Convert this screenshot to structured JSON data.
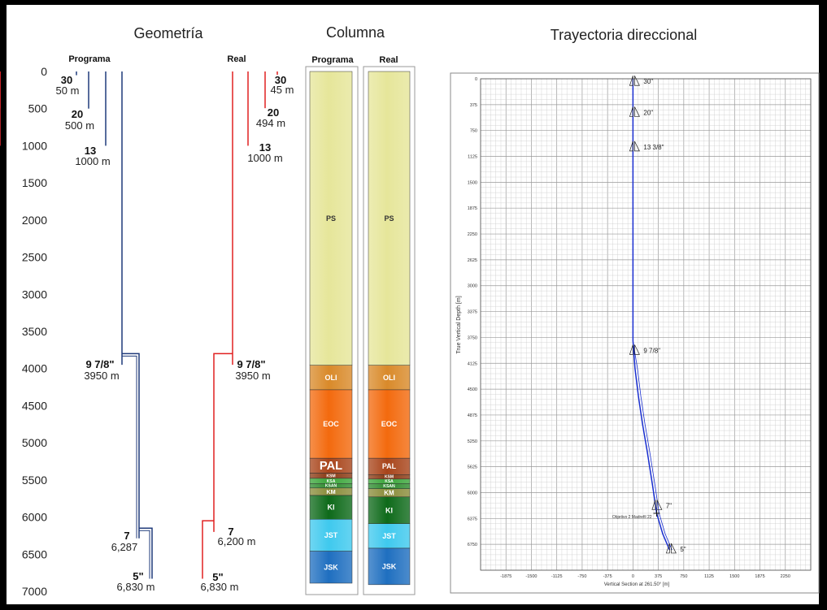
{
  "titles": {
    "geometria": "Geometría",
    "columna": "Columna",
    "trayectoria": "Trayectoria direccional"
  },
  "geometry": {
    "header_programa": "Programa",
    "header_real": "Real",
    "depth_ticks": [
      0,
      500,
      1000,
      1500,
      2000,
      2500,
      3000,
      3500,
      4000,
      4500,
      5000,
      5500,
      6000,
      6500,
      7000
    ],
    "programa_casings": [
      {
        "size": "30",
        "depth_label": "50 m",
        "depth": 50
      },
      {
        "size": "20",
        "depth_label": "500 m",
        "depth": 500
      },
      {
        "size": "13",
        "depth_label": "1000 m",
        "depth": 1000
      },
      {
        "size": "9 7/8\"",
        "depth_label": "3950 m",
        "depth": 3950
      },
      {
        "size": "7",
        "depth_label": "6,287",
        "depth": 6287
      },
      {
        "size": "5\"",
        "depth_label": "6,830 m",
        "depth": 6830
      }
    ],
    "real_casings": [
      {
        "size": "30",
        "depth_label": "45 m",
        "depth": 45
      },
      {
        "size": "20",
        "depth_label": "494 m",
        "depth": 494
      },
      {
        "size": "13",
        "depth_label": "1000 m",
        "depth": 1000
      },
      {
        "size": "9 7/8\"",
        "depth_label": "3950 m",
        "depth": 3950
      },
      {
        "size": "7",
        "depth_label": "6,200 m",
        "depth": 6200
      },
      {
        "size": "5\"",
        "depth_label": "6,830 m",
        "depth": 6830
      }
    ],
    "colors": {
      "programa": "#1f3a7a",
      "real": "#e02020"
    }
  },
  "column": {
    "header_programa": "Programa",
    "header_real": "Real",
    "programa_layers": [
      {
        "label": "PS",
        "top": 0,
        "bottom": 3950,
        "color": "#e6e69a"
      },
      {
        "label": "OLI",
        "top": 3950,
        "bottom": 4280,
        "color": "#d98a2a"
      },
      {
        "label": "EOC",
        "top": 4280,
        "bottom": 5200,
        "color": "#f36a0e"
      },
      {
        "label": "PAL",
        "top": 5200,
        "bottom": 5400,
        "color": "#a8441a"
      },
      {
        "label": "KSM",
        "top": 5400,
        "bottom": 5470,
        "color": "#8a3a14"
      },
      {
        "label": "KSA",
        "top": 5470,
        "bottom": 5540,
        "color": "#3aa63a"
      },
      {
        "label": "KSAN",
        "top": 5540,
        "bottom": 5600,
        "color": "#2e8b2e"
      },
      {
        "label": "KM",
        "top": 5600,
        "bottom": 5700,
        "color": "#8a8c3a"
      },
      {
        "label": "KI",
        "top": 5700,
        "bottom": 6020,
        "color": "#0e6a1a"
      },
      {
        "label": "JST",
        "top": 6020,
        "bottom": 6450,
        "color": "#3fc9ee"
      },
      {
        "label": "JSK",
        "top": 6450,
        "bottom": 6880,
        "color": "#1f6fc0"
      }
    ],
    "real_layers": [
      {
        "label": "PS",
        "top": 0,
        "bottom": 3950,
        "color": "#e6e69a"
      },
      {
        "label": "OLI",
        "top": 3950,
        "bottom": 4280,
        "color": "#d98a2a"
      },
      {
        "label": "EOC",
        "top": 4280,
        "bottom": 5200,
        "color": "#f36a0e"
      },
      {
        "label": "PAL",
        "top": 5200,
        "bottom": 5420,
        "color": "#a8441a"
      },
      {
        "label": "KSM",
        "top": 5420,
        "bottom": 5480,
        "color": "#8a3a14"
      },
      {
        "label": "KSA",
        "top": 5480,
        "bottom": 5540,
        "color": "#3aa63a"
      },
      {
        "label": "KSAN",
        "top": 5540,
        "bottom": 5610,
        "color": "#2e8b2e"
      },
      {
        "label": "KM",
        "top": 5610,
        "bottom": 5720,
        "color": "#8a8c3a"
      },
      {
        "label": "KI",
        "top": 5720,
        "bottom": 6080,
        "color": "#0e6a1a"
      },
      {
        "label": "JST",
        "top": 6080,
        "bottom": 6410,
        "color": "#3fc9ee"
      },
      {
        "label": "JSK",
        "top": 6410,
        "bottom": 6900,
        "color": "#1f6fc0"
      }
    ]
  },
  "trajectory": {
    "ylabel": "True Vertical Depth [m]",
    "xlabel": "Vertical Section at 261.50° [m]",
    "y_ticks": [
      "0",
      "375",
      "750",
      "1125",
      "1500",
      "1875",
      "2250",
      "2625",
      "3000",
      "3375",
      "3750",
      "4125",
      "4500",
      "4875",
      "5250",
      "5625",
      "6000",
      "6375",
      "6750"
    ],
    "x_ticks": [
      "-1875",
      "-1500",
      "-1125",
      "-750",
      "-375",
      "0",
      "375",
      "750",
      "1125",
      "1500",
      "1875",
      "2250"
    ],
    "casing_marks": [
      {
        "label": "30\"",
        "tvd": 50,
        "vs": 0
      },
      {
        "label": "20\"",
        "tvd": 500,
        "vs": 0
      },
      {
        "label": "13 3/8\"",
        "tvd": 1000,
        "vs": 0
      },
      {
        "label": "9 7/8\"",
        "tvd": 3950,
        "vs": 0
      },
      {
        "label": "7\"",
        "tvd": 6200,
        "vs": 330
      },
      {
        "label": "5\"",
        "tvd": 6830,
        "vs": 540
      }
    ],
    "target_label": "Objetivo 2 Madrefil 22",
    "target": {
      "tvd": 6300,
      "vs": 350
    },
    "path": [
      [
        0,
        0
      ],
      [
        0,
        1000
      ],
      [
        0,
        2000
      ],
      [
        0,
        3000
      ],
      [
        0,
        3800
      ],
      [
        30,
        4200
      ],
      [
        80,
        4600
      ],
      [
        140,
        5000
      ],
      [
        210,
        5400
      ],
      [
        290,
        5900
      ],
      [
        350,
        6300
      ],
      [
        440,
        6600
      ],
      [
        540,
        6830
      ]
    ],
    "color": "#1a2fd0"
  }
}
